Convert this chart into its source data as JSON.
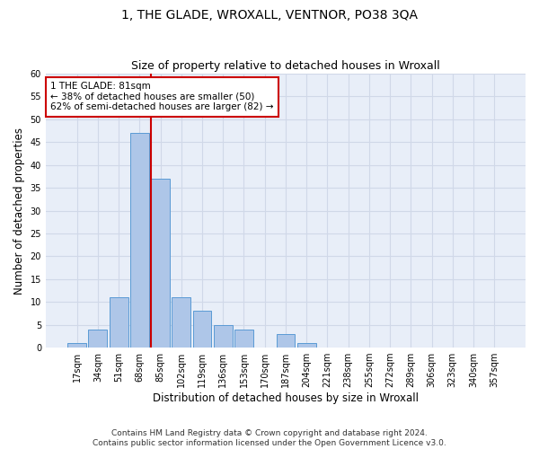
{
  "title": "1, THE GLADE, WROXALL, VENTNOR, PO38 3QA",
  "subtitle": "Size of property relative to detached houses in Wroxall",
  "xlabel": "Distribution of detached houses by size in Wroxall",
  "ylabel": "Number of detached properties",
  "bar_labels": [
    "17sqm",
    "34sqm",
    "51sqm",
    "68sqm",
    "85sqm",
    "102sqm",
    "119sqm",
    "136sqm",
    "153sqm",
    "170sqm",
    "187sqm",
    "204sqm",
    "221sqm",
    "238sqm",
    "255sqm",
    "272sqm",
    "289sqm",
    "306sqm",
    "323sqm",
    "340sqm",
    "357sqm"
  ],
  "bar_values": [
    1,
    4,
    11,
    47,
    37,
    11,
    8,
    5,
    4,
    0,
    3,
    1,
    0,
    0,
    0,
    0,
    0,
    0,
    0,
    0,
    0
  ],
  "bar_color": "#aec6e8",
  "bar_edge_color": "#5a9bd5",
  "grid_color": "#d0d8e8",
  "bg_color": "#e8eef8",
  "vline_color": "#cc0000",
  "annotation_box_text": "1 THE GLADE: 81sqm\n← 38% of detached houses are smaller (50)\n62% of semi-detached houses are larger (82) →",
  "annotation_box_color": "#cc0000",
  "ylim": [
    0,
    60
  ],
  "yticks": [
    0,
    5,
    10,
    15,
    20,
    25,
    30,
    35,
    40,
    45,
    50,
    55,
    60
  ],
  "footer": "Contains HM Land Registry data © Crown copyright and database right 2024.\nContains public sector information licensed under the Open Government Licence v3.0.",
  "title_fontsize": 10,
  "subtitle_fontsize": 9,
  "xlabel_fontsize": 8.5,
  "ylabel_fontsize": 8.5,
  "tick_fontsize": 7,
  "annotation_fontsize": 7.5,
  "footer_fontsize": 6.5
}
